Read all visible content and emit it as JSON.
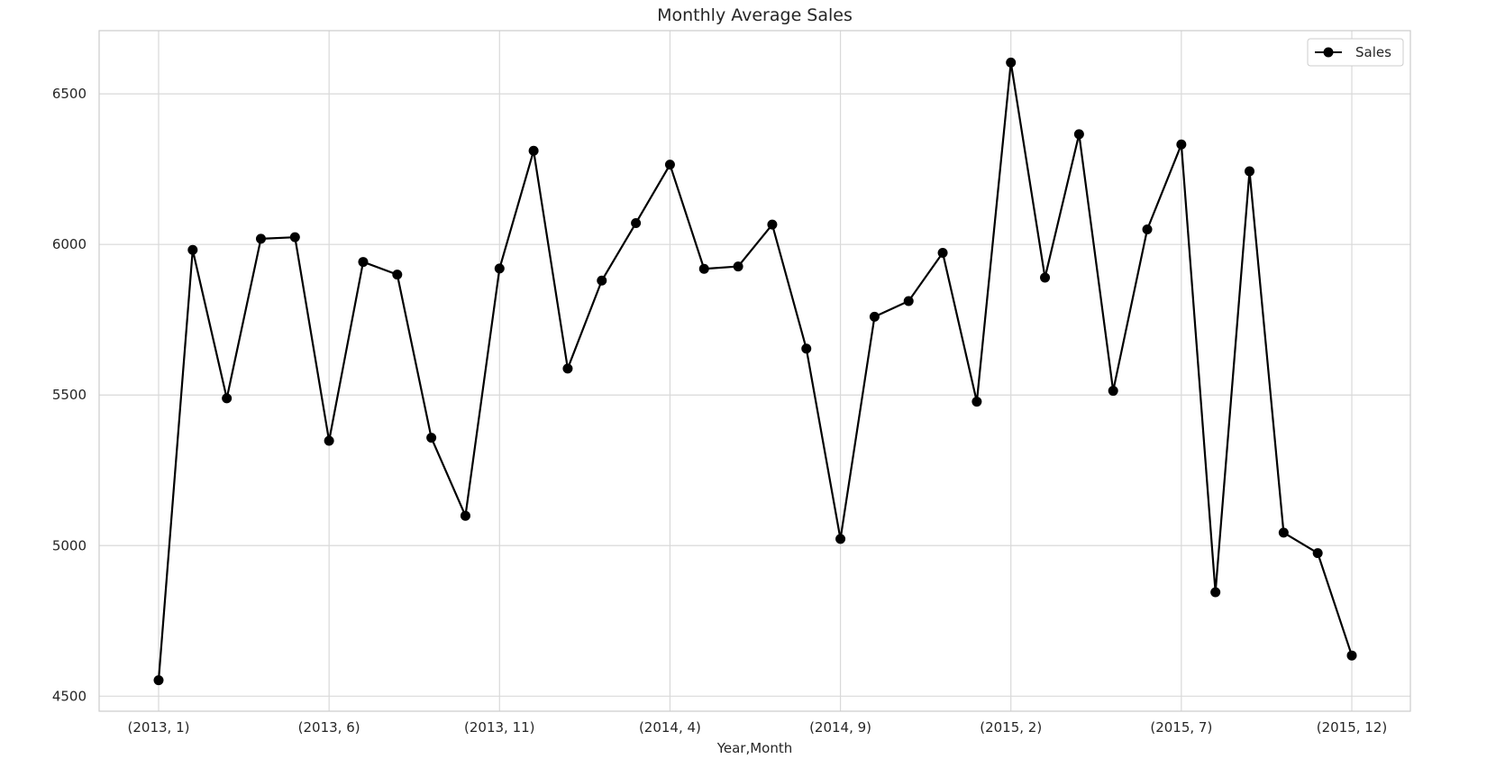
{
  "chart_data": {
    "type": "line",
    "title": "Monthly Average Sales",
    "xlabel": "Year,Month",
    "ylabel": "",
    "categories": [
      "(2013, 1)",
      "(2013, 2)",
      "(2013, 3)",
      "(2013, 4)",
      "(2013, 5)",
      "(2013, 6)",
      "(2013, 7)",
      "(2013, 8)",
      "(2013, 9)",
      "(2013, 10)",
      "(2013, 11)",
      "(2013, 12)",
      "(2014, 1)",
      "(2014, 2)",
      "(2014, 3)",
      "(2014, 4)",
      "(2014, 5)",
      "(2014, 6)",
      "(2014, 7)",
      "(2014, 8)",
      "(2014, 9)",
      "(2014, 10)",
      "(2014, 11)",
      "(2014, 12)",
      "(2015, 1)",
      "(2015, 2)",
      "(2015, 3)",
      "(2015, 4)",
      "(2015, 5)",
      "(2015, 6)",
      "(2015, 7)",
      "(2015, 8)",
      "(2015, 9)",
      "(2015, 10)",
      "(2015, 11)",
      "(2015, 12)"
    ],
    "xtick_labels": [
      "(2013, 1)",
      "(2013, 6)",
      "(2013, 11)",
      "(2014, 4)",
      "(2014, 9)",
      "(2015, 2)",
      "(2015, 7)",
      "(2015, 12)"
    ],
    "xtick_indices": [
      0,
      5,
      10,
      15,
      20,
      25,
      30,
      35
    ],
    "yticks": [
      4500,
      5000,
      5500,
      6000,
      6500
    ],
    "ylim": [
      4450,
      6710
    ],
    "grid": true,
    "legend_position": "top-right",
    "series": [
      {
        "name": "Sales",
        "color": "#000000",
        "marker": "circle",
        "values": [
          4553,
          5982,
          5489,
          6019,
          6024,
          5348,
          5942,
          5900,
          5358,
          5099,
          5920,
          6311,
          5588,
          5880,
          6071,
          6265,
          5919,
          5927,
          6066,
          5654,
          5022,
          5760,
          5812,
          5972,
          5478,
          6604,
          5890,
          6366,
          5514,
          6050,
          6332,
          4845,
          6243,
          5043,
          4975,
          4635
        ]
      }
    ]
  }
}
